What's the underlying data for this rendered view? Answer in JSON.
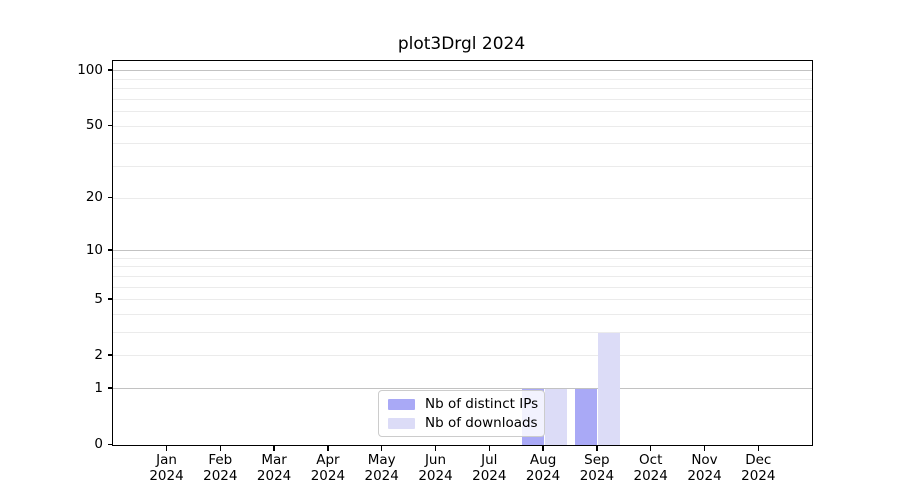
{
  "figure": {
    "title": "plot3Drgl 2024"
  },
  "chart_data": {
    "type": "bar",
    "title": "plot3Drgl 2024",
    "categories": [
      "Jan 2024",
      "Feb 2024",
      "Mar 2024",
      "Apr 2024",
      "May 2024",
      "Jun 2024",
      "Jul 2024",
      "Aug 2024",
      "Sep 2024",
      "Oct 2024",
      "Nov 2024",
      "Dec 2024"
    ],
    "x_tick_months": [
      "Jan",
      "Feb",
      "Mar",
      "Apr",
      "May",
      "Jun",
      "Jul",
      "Aug",
      "Sep",
      "Oct",
      "Nov",
      "Dec"
    ],
    "x_tick_year": "2024",
    "series": [
      {
        "name": "Nb of distinct IPs",
        "color": "#a9a9f6",
        "values": [
          0,
          0,
          0,
          0,
          0,
          0,
          0,
          1,
          1,
          0,
          0,
          0
        ]
      },
      {
        "name": "Nb of downloads",
        "color": "#dcdcf7",
        "values": [
          0,
          0,
          0,
          0,
          0,
          0,
          0,
          1,
          3,
          0,
          0,
          0
        ]
      }
    ],
    "xlabel": "",
    "ylabel": "",
    "yscale": "log1p",
    "ylim": [
      0,
      113
    ],
    "ytick_values": [
      0,
      1,
      2,
      5,
      10,
      20,
      50,
      100
    ],
    "ytick_labels": [
      "0",
      "1",
      "2",
      "5",
      "10",
      "20",
      "50",
      "100"
    ],
    "grid": {
      "on": true,
      "major_lines": [
        1,
        10,
        100
      ],
      "minor_lines": [
        2,
        3,
        4,
        5,
        6,
        7,
        8,
        9,
        20,
        30,
        40,
        50,
        60,
        70,
        80,
        90
      ]
    },
    "legend": {
      "position": "lower-center",
      "entries": [
        "Nb of distinct IPs",
        "Nb of downloads"
      ]
    },
    "colors": {
      "bar_dark": "#a9a9f6",
      "bar_light": "#dcdcf7",
      "grid_major": "#c2c2c2",
      "grid_minor": "#ebebeb",
      "spine": "#000000",
      "background": "#ffffff"
    }
  }
}
